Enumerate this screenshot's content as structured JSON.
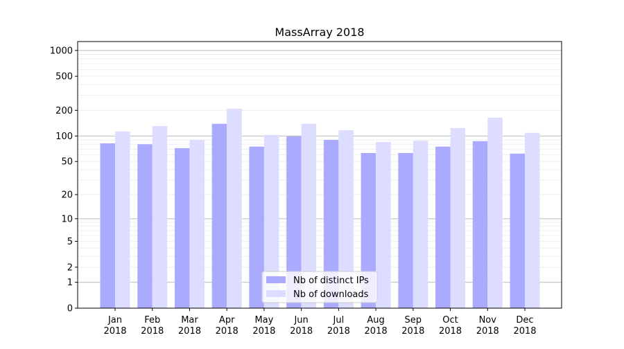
{
  "chart_data": {
    "type": "bar",
    "title": "MassArray 2018",
    "xlabel": "",
    "ylabel": "",
    "yscale": "log10(1+y)",
    "ylim": [
      0,
      1270
    ],
    "yticks": [
      0,
      1,
      2,
      5,
      10,
      20,
      50,
      100,
      200,
      500,
      1000
    ],
    "grid": true,
    "legend_position": "lower center",
    "categories": [
      "Jan\n2018",
      "Feb\n2018",
      "Mar\n2018",
      "Apr\n2018",
      "May\n2018",
      "Jun\n2018",
      "Jul\n2018",
      "Aug\n2018",
      "Sep\n2018",
      "Oct\n2018",
      "Nov\n2018",
      "Dec\n2018"
    ],
    "series": [
      {
        "name": "Nb of distinct IPs",
        "color": "#aaaaff",
        "values": [
          82,
          80,
          72,
          139,
          75,
          99,
          90,
          63,
          63,
          75,
          87,
          62
        ]
      },
      {
        "name": "Nb of downloads",
        "color": "#ddddff",
        "values": [
          113,
          131,
          90,
          209,
          103,
          139,
          117,
          85,
          88,
          124,
          164,
          109
        ]
      }
    ]
  }
}
